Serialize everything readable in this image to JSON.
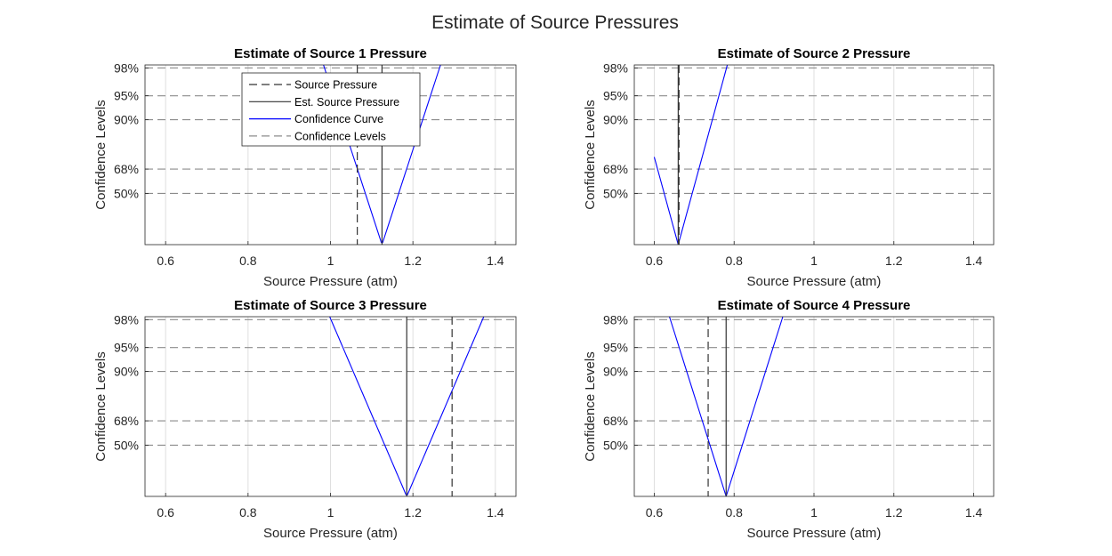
{
  "figure": {
    "title": "Estimate of Source Pressures"
  },
  "colors": {
    "curve": "#0000ff",
    "source": "#333333",
    "estimate": "#333333",
    "confidence": "#8c8c8c",
    "grid": "#dfdfdf",
    "axes": "#262626"
  },
  "chart_data": [
    {
      "type": "line",
      "title": "Estimate of Source 1 Pressure",
      "xlabel": "Source Pressure (atm)",
      "ylabel": "Confidence Levels",
      "xlim": [
        0.55,
        1.45
      ],
      "xticks": [
        0.6,
        0.8,
        1,
        1.2,
        1.4
      ],
      "xtick_labels": [
        "0.6",
        "0.8",
        "1",
        "1.2",
        "1.4"
      ],
      "confidence_levels": [
        50,
        68,
        90,
        95,
        98
      ],
      "ytick_labels": [
        "50%",
        "68%",
        "90%",
        "95%",
        "98%"
      ],
      "source_pressure": 1.065,
      "est_source_pressure": 1.125,
      "sigma": 0.06,
      "curve_range": [
        0.6,
        1.4
      ],
      "grid": true,
      "legend": {
        "location": "top-center",
        "entries": [
          "Source Pressure",
          "Est. Source Pressure",
          "Confidence Curve",
          "Confidence Levels"
        ]
      }
    },
    {
      "type": "line",
      "title": "Estimate of Source 2 Pressure",
      "xlabel": "Source Pressure (atm)",
      "ylabel": "Confidence Levels",
      "xlim": [
        0.55,
        1.45
      ],
      "xticks": [
        0.6,
        0.8,
        1,
        1.2,
        1.4
      ],
      "xtick_labels": [
        "0.6",
        "0.8",
        "1",
        "1.2",
        "1.4"
      ],
      "confidence_levels": [
        50,
        68,
        90,
        95,
        98
      ],
      "ytick_labels": [
        "50%",
        "68%",
        "90%",
        "95%",
        "98%"
      ],
      "source_pressure": 0.662,
      "est_source_pressure": 0.66,
      "sigma": 0.052,
      "curve_range": [
        0.6,
        1.4
      ],
      "grid": true
    },
    {
      "type": "line",
      "title": "Estimate of Source 3 Pressure",
      "xlabel": "Source Pressure (atm)",
      "ylabel": "Confidence Levels",
      "xlim": [
        0.55,
        1.45
      ],
      "xticks": [
        0.6,
        0.8,
        1,
        1.2,
        1.4
      ],
      "xtick_labels": [
        "0.6",
        "0.8",
        "1",
        "1.2",
        "1.4"
      ],
      "confidence_levels": [
        50,
        68,
        90,
        95,
        98
      ],
      "ytick_labels": [
        "50%",
        "68%",
        "90%",
        "95%",
        "98%"
      ],
      "source_pressure": 1.295,
      "est_source_pressure": 1.185,
      "sigma": 0.079,
      "curve_range": [
        0.6,
        1.4
      ],
      "grid": true
    },
    {
      "type": "line",
      "title": "Estimate of Source 4 Pressure",
      "xlabel": "Source Pressure (atm)",
      "ylabel": "Confidence Levels",
      "xlim": [
        0.55,
        1.45
      ],
      "xticks": [
        0.6,
        0.8,
        1,
        1.2,
        1.4
      ],
      "xtick_labels": [
        "0.6",
        "0.8",
        "1",
        "1.2",
        "1.4"
      ],
      "confidence_levels": [
        50,
        68,
        90,
        95,
        98
      ],
      "ytick_labels": [
        "50%",
        "68%",
        "90%",
        "95%",
        "98%"
      ],
      "source_pressure": 0.735,
      "est_source_pressure": 0.78,
      "sigma": 0.06,
      "curve_range": [
        0.6,
        1.4
      ],
      "grid": true
    }
  ]
}
